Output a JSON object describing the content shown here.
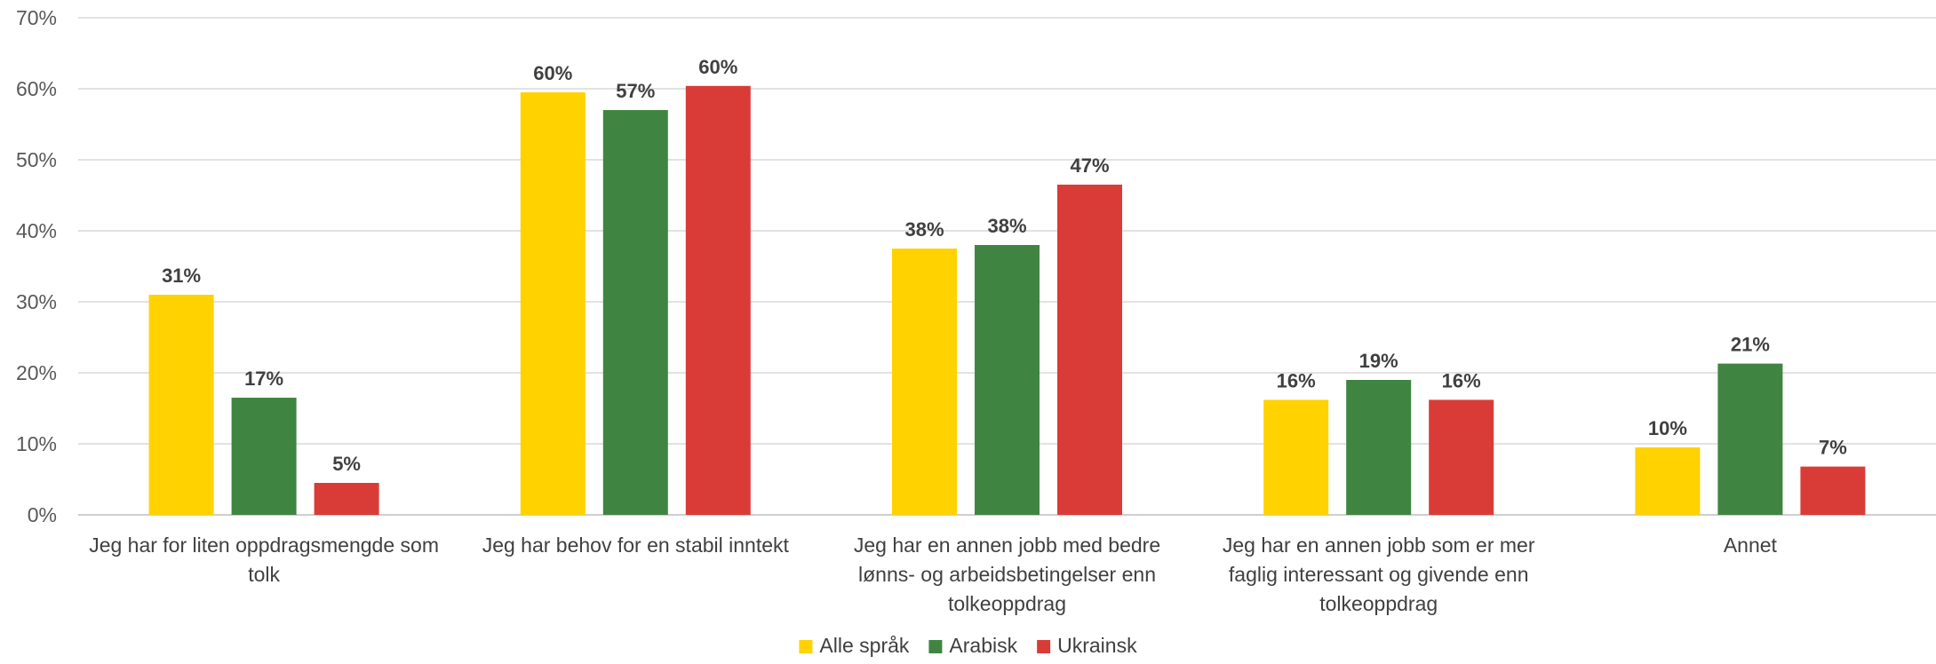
{
  "chart_data": {
    "type": "bar",
    "title": "",
    "xlabel": "",
    "ylabel": "",
    "ylim": [
      0,
      0.7
    ],
    "yticks": [
      0,
      0.1,
      0.2,
      0.3,
      0.4,
      0.5,
      0.6,
      0.7
    ],
    "ytick_labels": [
      "0%",
      "10%",
      "20%",
      "30%",
      "40%",
      "50%",
      "60%",
      "70%"
    ],
    "grid": true,
    "legend_position": "bottom",
    "categories": [
      [
        "Jeg har for liten oppdragsmengde som",
        "tolk"
      ],
      [
        "Jeg har behov for en stabil inntekt"
      ],
      [
        "Jeg har en annen jobb med bedre",
        "lønns- og arbeidsbetingelser enn",
        "tolkeoppdrag"
      ],
      [
        "Jeg har en annen jobb som er mer",
        "faglig interessant og givende enn",
        "tolkeoppdrag"
      ],
      [
        "Annet"
      ]
    ],
    "series": [
      {
        "name": "Alle språk",
        "color": "#ffd200",
        "values": [
          0.31,
          0.595,
          0.375,
          0.162,
          0.095
        ],
        "labels": [
          "31%",
          "60%",
          "38%",
          "16%",
          "10%"
        ]
      },
      {
        "name": "Arabisk",
        "color": "#3f8541",
        "values": [
          0.165,
          0.57,
          0.38,
          0.19,
          0.213
        ],
        "labels": [
          "17%",
          "57%",
          "38%",
          "19%",
          "21%"
        ]
      },
      {
        "name": "Ukrainsk",
        "color": "#d93c37",
        "values": [
          0.045,
          0.604,
          0.465,
          0.162,
          0.068
        ],
        "labels": [
          "5%",
          "60%",
          "47%",
          "16%",
          "7%"
        ]
      }
    ]
  }
}
